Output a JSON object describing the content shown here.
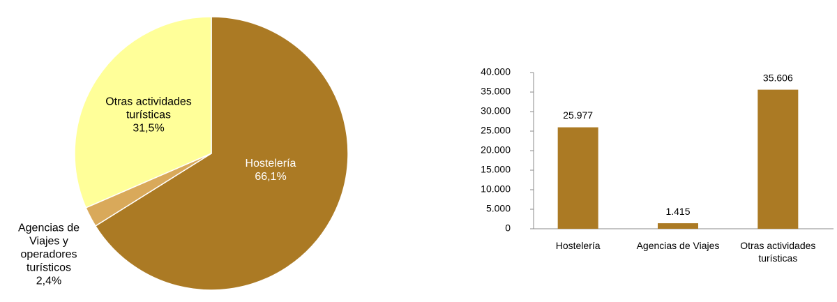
{
  "chart_data": [
    {
      "type": "pie",
      "categories": [
        "Hostelería",
        "Agencias de Viajes y operadores turísticos",
        "Otras actividades turísticas"
      ],
      "values": [
        66.1,
        2.4,
        31.5
      ],
      "value_labels": [
        "66,1%",
        "2,4%",
        "31,5%"
      ],
      "colors": [
        "#ab7a24",
        "#d9a95a",
        "#ffff99"
      ]
    },
    {
      "type": "bar",
      "categories": [
        "Hostelería",
        "Agencias de Viajes",
        "Otras actividades turísticas"
      ],
      "values": [
        25977,
        1415,
        35606
      ],
      "value_labels": [
        "25.977",
        "1.415",
        "35.606"
      ],
      "color": "#ab7a24",
      "ylim": [
        0,
        40000
      ],
      "yticks": [
        0,
        {
          "value": 5000,
          "label": "5.000"
        },
        {
          "value": 10000,
          "label": "10.000"
        },
        {
          "value": 15000,
          "label": "15.000"
        },
        {
          "value": 20000,
          "label": "20.000"
        },
        {
          "value": 25000,
          "label": "25.000"
        },
        {
          "value": 30000,
          "label": "30.000"
        },
        {
          "value": 35000,
          "label": "35.000"
        },
        {
          "value": 40000,
          "label": "40.000"
        }
      ],
      "grid": false
    }
  ]
}
